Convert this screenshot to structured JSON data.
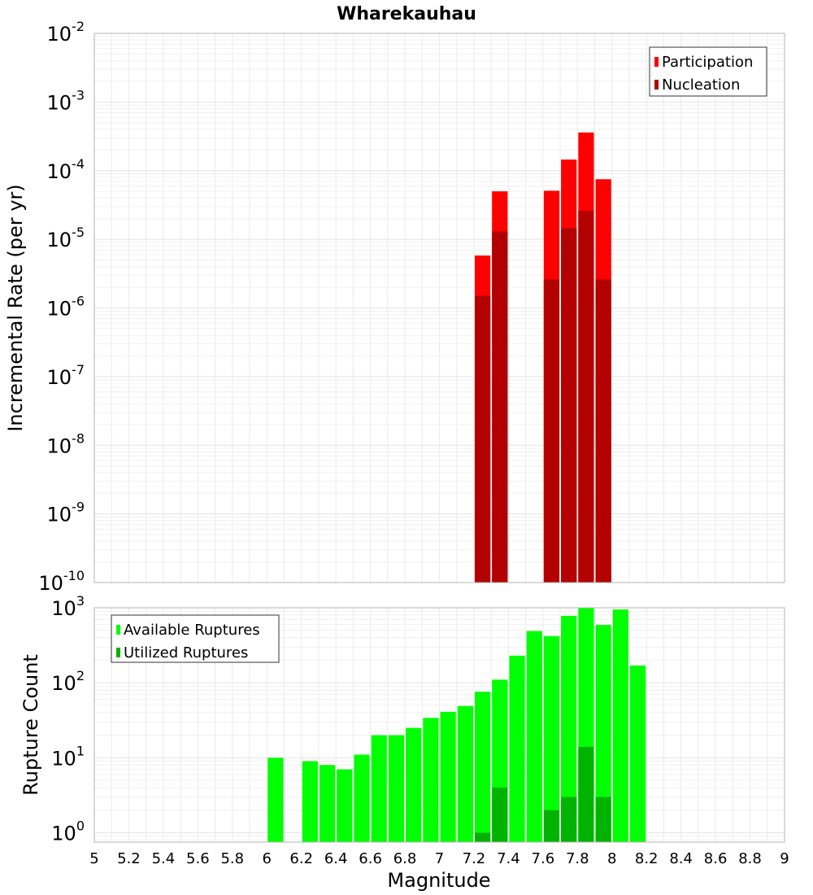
{
  "chart_data": [
    {
      "type": "bar",
      "title": "Wharekauhau",
      "xlabel": "",
      "ylabel": "Incremental Rate (per yr)",
      "yscale": "log",
      "xlim": [
        5,
        9
      ],
      "ylim": [
        1e-10,
        0.01
      ],
      "y_ticks": [
        {
          "base": "10",
          "exp": "-10"
        },
        {
          "base": "10",
          "exp": "-9"
        },
        {
          "base": "10",
          "exp": "-8"
        },
        {
          "base": "10",
          "exp": "-7"
        },
        {
          "base": "10",
          "exp": "-6"
        },
        {
          "base": "10",
          "exp": "-5"
        },
        {
          "base": "10",
          "exp": "-4"
        },
        {
          "base": "10",
          "exp": "-3"
        },
        {
          "base": "10",
          "exp": "-2"
        }
      ],
      "legend_position": "top-right",
      "grid": true,
      "series": [
        {
          "name": "Participation",
          "color": "#ff0000",
          "x": [
            7.25,
            7.35,
            7.65,
            7.75,
            7.85,
            7.95
          ],
          "values": [
            5.8e-06,
            5e-05,
            5.1e-05,
            0.000145,
            0.00036,
            7.5e-05
          ]
        },
        {
          "name": "Nucleation",
          "color": "#b30000",
          "x": [
            7.25,
            7.35,
            7.65,
            7.75,
            7.85,
            7.95
          ],
          "values": [
            1.5e-06,
            1.3e-05,
            2.6e-06,
            1.45e-05,
            2.6e-05,
            2.6e-06
          ]
        }
      ]
    },
    {
      "type": "bar",
      "xlabel": "Magnitude",
      "ylabel": "Rupture Count",
      "yscale": "log",
      "xlim": [
        5,
        9
      ],
      "ylim": [
        0.75,
        1000
      ],
      "x_ticks": [
        "5",
        "5.2",
        "5.4",
        "5.6",
        "5.8",
        "6",
        "6.2",
        "6.4",
        "6.6",
        "6.8",
        "7",
        "7.2",
        "7.4",
        "7.6",
        "7.8",
        "8",
        "8.2",
        "8.4",
        "8.6",
        "8.8",
        "9"
      ],
      "y_ticks": [
        {
          "base": "10",
          "exp": "0"
        },
        {
          "base": "10",
          "exp": "1"
        },
        {
          "base": "10",
          "exp": "2"
        },
        {
          "base": "10",
          "exp": "3"
        }
      ],
      "legend_position": "top-left",
      "grid": true,
      "series": [
        {
          "name": "Available Ruptures",
          "color": "#00ff00",
          "x": [
            6.05,
            6.25,
            6.35,
            6.45,
            6.55,
            6.65,
            6.75,
            6.85,
            6.95,
            7.05,
            7.15,
            7.25,
            7.35,
            7.45,
            7.55,
            7.65,
            7.75,
            7.85,
            7.95,
            8.05,
            8.15
          ],
          "values": [
            10,
            9,
            8,
            7,
            11,
            20,
            20,
            25,
            34,
            41,
            49,
            76,
            110,
            230,
            490,
            420,
            780,
            1000,
            590,
            950,
            170
          ]
        },
        {
          "name": "Utilized Ruptures",
          "color": "#00b300",
          "x": [
            7.25,
            7.35,
            7.65,
            7.75,
            7.85,
            7.95
          ],
          "values": [
            1,
            4,
            2,
            3,
            14,
            3
          ]
        }
      ]
    }
  ]
}
